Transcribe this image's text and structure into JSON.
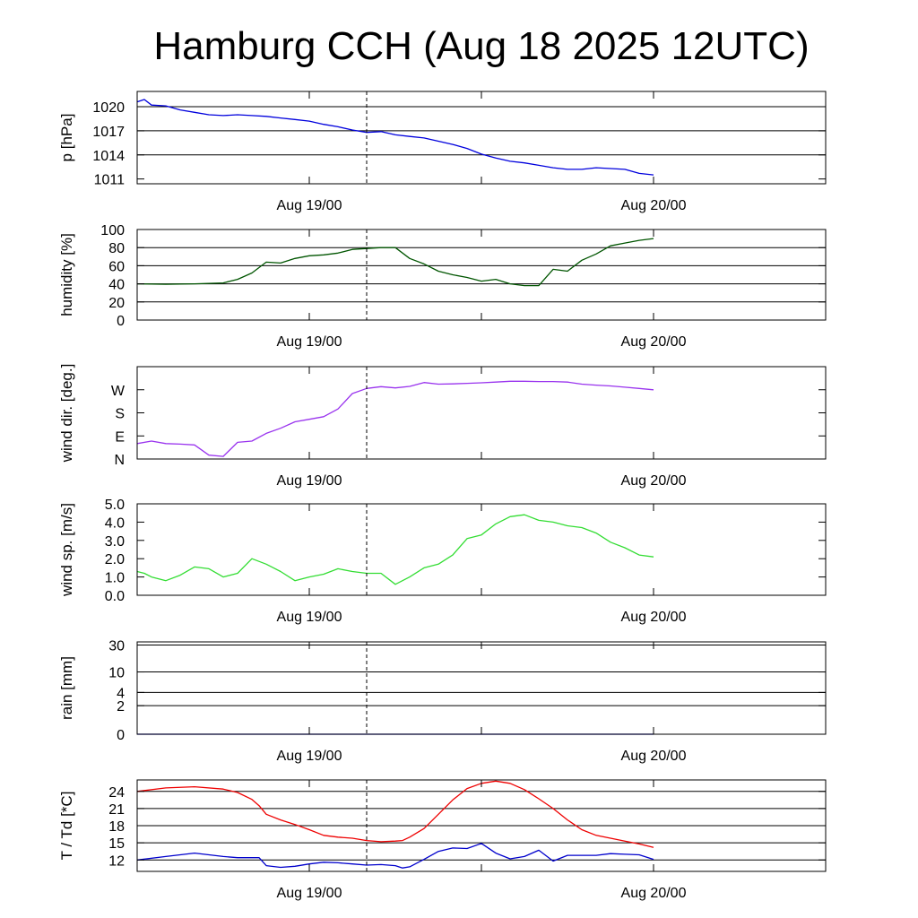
{
  "page": {
    "title": "Hamburg CCH (Aug 18 2025 12UTC)"
  },
  "chart_data": [
    {
      "type": "line",
      "ylabel": "p [hPa]",
      "x_range_hours": [
        12,
        60
      ],
      "x_ticks": [
        {
          "x": 24,
          "label": "Aug 19/00"
        },
        {
          "x": 48,
          "label": "Aug 20/00"
        }
      ],
      "x_minor_ticks": [
        36
      ],
      "dashed_marker_x": 28,
      "ylim": [
        1010.4,
        1021.9
      ],
      "y_ticks": [
        {
          "v": 1011,
          "label": "1011"
        },
        {
          "v": 1014,
          "label": "1014"
        },
        {
          "v": 1017,
          "label": "1017"
        },
        {
          "v": 1020,
          "label": "1020"
        }
      ],
      "grid_y": [
        1014,
        1017,
        1020
      ],
      "series": [
        {
          "name": "",
          "color": "#0000dd",
          "x": [
            12,
            12.5,
            13,
            14,
            15,
            16,
            17,
            18,
            19,
            20,
            21,
            22,
            23,
            24,
            25,
            26,
            27,
            28,
            29,
            30,
            31,
            32,
            33,
            34,
            35,
            36,
            37,
            38,
            39,
            40,
            41,
            42,
            43,
            44,
            45,
            46,
            47,
            48
          ],
          "y": [
            1020.6,
            1020.9,
            1020.2,
            1020.1,
            1019.6,
            1019.3,
            1019.0,
            1018.9,
            1019.0,
            1018.9,
            1018.8,
            1018.6,
            1018.4,
            1018.2,
            1017.8,
            1017.5,
            1017.1,
            1016.8,
            1016.9,
            1016.5,
            1016.3,
            1016.1,
            1015.7,
            1015.3,
            1014.8,
            1014.1,
            1013.6,
            1013.2,
            1013.0,
            1012.7,
            1012.4,
            1012.2,
            1012.2,
            1012.4,
            1012.3,
            1012.2,
            1011.7,
            1011.5
          ]
        }
      ]
    },
    {
      "type": "line",
      "ylabel": "humidity [%]",
      "x_range_hours": [
        12,
        60
      ],
      "x_ticks": [
        {
          "x": 24,
          "label": "Aug 19/00"
        },
        {
          "x": 48,
          "label": "Aug 20/00"
        }
      ],
      "x_minor_ticks": [
        36
      ],
      "dashed_marker_x": 28,
      "ylim": [
        0,
        100
      ],
      "y_ticks": [
        {
          "v": 0,
          "label": "0"
        },
        {
          "v": 20,
          "label": "20"
        },
        {
          "v": 40,
          "label": "40"
        },
        {
          "v": 60,
          "label": "60"
        },
        {
          "v": 80,
          "label": "80"
        },
        {
          "v": 100,
          "label": "100"
        }
      ],
      "grid_y": [
        20,
        40,
        60,
        80
      ],
      "series": [
        {
          "name": "",
          "color": "#005500",
          "x": [
            12,
            14,
            16,
            18,
            19,
            20,
            21,
            22,
            23,
            24,
            25,
            26,
            27,
            28,
            29,
            30,
            31,
            32,
            33,
            34,
            35,
            36,
            37,
            38,
            39,
            40,
            41,
            42,
            43,
            44,
            45,
            46,
            47,
            48
          ],
          "y": [
            40,
            39.5,
            40,
            41,
            45,
            52,
            64,
            63,
            68,
            71,
            72,
            74,
            78,
            79,
            80,
            80,
            68,
            62,
            54,
            50,
            47,
            43,
            45,
            40,
            38,
            38,
            56,
            54,
            66,
            73,
            82,
            85,
            88,
            90
          ]
        }
      ]
    },
    {
      "type": "line",
      "ylabel": "wind dir. [deg.]",
      "x_range_hours": [
        12,
        60
      ],
      "x_ticks": [
        {
          "x": 24,
          "label": "Aug 19/00"
        },
        {
          "x": 48,
          "label": "Aug 20/00"
        }
      ],
      "x_minor_ticks": [
        36
      ],
      "dashed_marker_x": 28,
      "ylim": [
        0,
        360
      ],
      "y_ticks": [
        {
          "v": 0,
          "label": "N"
        },
        {
          "v": 90,
          "label": "E"
        },
        {
          "v": 180,
          "label": "S"
        },
        {
          "v": 270,
          "label": "W"
        }
      ],
      "grid_y": [],
      "series": [
        {
          "name": "",
          "color": "#9933ee",
          "x": [
            12,
            13,
            14,
            15,
            16,
            17,
            18,
            19,
            20,
            21,
            22,
            23,
            24,
            25,
            26,
            27,
            28,
            29,
            30,
            31,
            32,
            33,
            34,
            35,
            36,
            37,
            38,
            39,
            40,
            41,
            42,
            43,
            44,
            45,
            46,
            47,
            48
          ],
          "y": [
            60,
            70,
            60,
            58,
            55,
            15,
            10,
            65,
            70,
            100,
            120,
            145,
            155,
            165,
            195,
            255,
            275,
            282,
            277,
            283,
            298,
            292,
            293,
            295,
            297,
            300,
            303,
            303,
            302,
            302,
            300,
            292,
            288,
            285,
            280,
            275,
            270
          ]
        }
      ]
    },
    {
      "type": "line",
      "ylabel": "wind sp. [m/s]",
      "x_range_hours": [
        12,
        60
      ],
      "x_ticks": [
        {
          "x": 24,
          "label": "Aug 19/00"
        },
        {
          "x": 48,
          "label": "Aug 20/00"
        }
      ],
      "x_minor_ticks": [
        36
      ],
      "dashed_marker_x": 28,
      "ylim": [
        0,
        5
      ],
      "y_ticks": [
        {
          "v": 0,
          "label": "0.0"
        },
        {
          "v": 1,
          "label": "1.0"
        },
        {
          "v": 2,
          "label": "2.0"
        },
        {
          "v": 3,
          "label": "3.0"
        },
        {
          "v": 4,
          "label": "4.0"
        },
        {
          "v": 5,
          "label": "5.0"
        }
      ],
      "grid_y": [],
      "series": [
        {
          "name": "",
          "color": "#33dd33",
          "x": [
            12,
            12.5,
            13,
            14,
            15,
            16,
            17,
            18,
            19,
            20,
            21,
            22,
            23,
            24,
            25,
            26,
            27,
            28,
            29,
            30,
            31,
            32,
            33,
            34,
            35,
            36,
            37,
            38,
            39,
            40,
            41,
            42,
            43,
            44,
            45,
            46,
            47,
            48
          ],
          "y": [
            1.3,
            1.2,
            1.0,
            0.8,
            1.1,
            1.55,
            1.45,
            1.0,
            1.2,
            2.0,
            1.7,
            1.3,
            0.8,
            1.0,
            1.15,
            1.45,
            1.3,
            1.2,
            1.2,
            0.6,
            1.0,
            1.5,
            1.7,
            2.2,
            3.1,
            3.3,
            3.9,
            4.3,
            4.4,
            4.1,
            4.0,
            3.8,
            3.7,
            3.4,
            2.9,
            2.6,
            2.2,
            2.1
          ]
        }
      ]
    },
    {
      "type": "line",
      "ylabel": "rain [mm]",
      "x_range_hours": [
        12,
        60
      ],
      "x_ticks": [
        {
          "x": 24,
          "label": "Aug 19/00"
        },
        {
          "x": 48,
          "label": "Aug 20/00"
        }
      ],
      "x_minor_ticks": [
        36
      ],
      "dashed_marker_x": 28,
      "scale": "log1p",
      "ylim": [
        0,
        34
      ],
      "y_ticks": [
        {
          "v": 0,
          "label": "0"
        },
        {
          "v": 2,
          "label": "2"
        },
        {
          "v": 4,
          "label": "4"
        },
        {
          "v": 10,
          "label": "10"
        },
        {
          "v": 30,
          "label": "30"
        }
      ],
      "grid_y": [
        2,
        4,
        10,
        30
      ],
      "series": [
        {
          "name": "",
          "color": "#0000dd",
          "x": [
            12,
            48
          ],
          "y": [
            0,
            0
          ]
        }
      ]
    },
    {
      "type": "line",
      "ylabel": "T / Td [*C]",
      "x_range_hours": [
        12,
        60
      ],
      "x_ticks": [
        {
          "x": 24,
          "label": "Aug 19/00"
        },
        {
          "x": 48,
          "label": "Aug 20/00"
        }
      ],
      "x_minor_ticks": [
        36
      ],
      "dashed_marker_x": 28,
      "ylim": [
        10,
        26
      ],
      "y_ticks": [
        {
          "v": 12,
          "label": "12"
        },
        {
          "v": 15,
          "label": "15"
        },
        {
          "v": 18,
          "label": "18"
        },
        {
          "v": 21,
          "label": "21"
        },
        {
          "v": 24,
          "label": "24"
        }
      ],
      "grid_y": [
        12,
        15,
        18,
        21,
        24
      ],
      "series": [
        {
          "name": "",
          "color": "#ee0000",
          "x": [
            12,
            14,
            16,
            18,
            19,
            20,
            20.5,
            21,
            22,
            23,
            24,
            25,
            26,
            27,
            28,
            29,
            30,
            30.5,
            31,
            32,
            33,
            34,
            35,
            36,
            37,
            38,
            39,
            40,
            41,
            42,
            43,
            44,
            45,
            46,
            47,
            48
          ],
          "y": [
            24,
            24.6,
            24.8,
            24.4,
            23.8,
            22.6,
            21.5,
            20,
            19,
            18.2,
            17.3,
            16.3,
            16,
            15.8,
            15.4,
            15.2,
            15.3,
            15.4,
            16,
            17.5,
            20,
            22.5,
            24.5,
            25.4,
            25.8,
            25.4,
            24.3,
            22.7,
            21,
            19,
            17.3,
            16.3,
            15.8,
            15.3,
            14.8,
            14.2
          ]
        },
        {
          "name": "",
          "color": "#0000cc",
          "x": [
            12,
            14,
            16,
            18,
            19,
            20,
            20.5,
            21,
            22,
            23,
            24,
            25,
            26,
            27,
            28,
            29,
            30,
            30.5,
            31,
            32,
            33,
            34,
            35,
            36,
            37,
            38,
            39,
            40,
            41,
            42,
            43,
            44,
            45,
            46,
            47,
            48
          ],
          "y": [
            12,
            12.6,
            13.2,
            12.6,
            12.4,
            12.4,
            12.4,
            11,
            10.7,
            10.9,
            11.3,
            11.6,
            11.5,
            11.3,
            11.1,
            11.2,
            11.0,
            10.6,
            10.8,
            12.1,
            13.5,
            14.1,
            14.0,
            14.9,
            13.2,
            12.2,
            12.6,
            13.7,
            11.8,
            12.8,
            12.8,
            12.8,
            13.1,
            13.0,
            12.9,
            12.1
          ]
        }
      ]
    }
  ]
}
